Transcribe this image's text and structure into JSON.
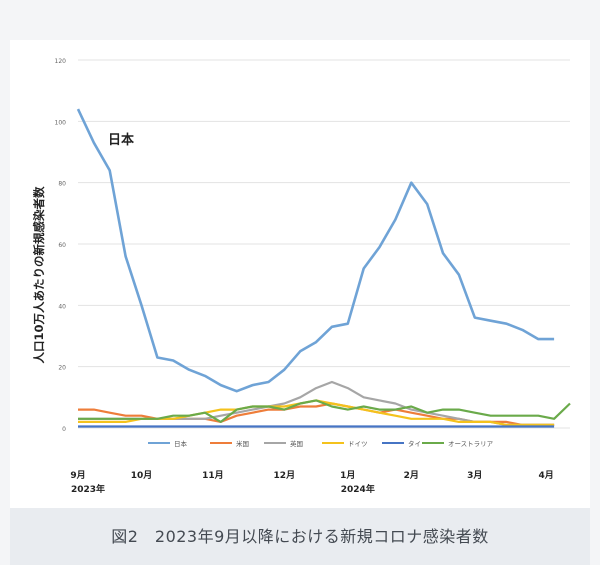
{
  "caption": "図2　2023年9月以降における新規コロナ感染者数",
  "chart_data": {
    "type": "line",
    "title": "",
    "ylabel": "人口10万人あたりの新規感染者数",
    "xlabel": "",
    "ylim": [
      0,
      120
    ],
    "yticks": [
      0,
      20,
      40,
      60,
      80,
      100,
      120
    ],
    "grid": true,
    "legend_position": "bottom",
    "annotation": "日本",
    "x_ticks": [
      {
        "x": 0,
        "label": "9月",
        "sub": "2023年"
      },
      {
        "x": 4,
        "label": "10月",
        "sub": ""
      },
      {
        "x": 8.5,
        "label": "11月",
        "sub": ""
      },
      {
        "x": 13,
        "label": "12月",
        "sub": ""
      },
      {
        "x": 17,
        "label": "1月",
        "sub": "2024年"
      },
      {
        "x": 21,
        "label": "2月",
        "sub": ""
      },
      {
        "x": 25,
        "label": "3月",
        "sub": ""
      },
      {
        "x": 29.5,
        "label": "4月",
        "sub": ""
      }
    ],
    "x": [
      0,
      1,
      2,
      3,
      4,
      5,
      6,
      7,
      8,
      9,
      10,
      11,
      12,
      13,
      14,
      15,
      16,
      17,
      18,
      19,
      20,
      21,
      22,
      23,
      24,
      25,
      26,
      27,
      28,
      29,
      30,
      31
    ],
    "series": [
      {
        "name": "日本",
        "color": "#6fa3d6",
        "values": [
          104,
          93,
          84,
          56,
          40,
          23,
          22,
          19,
          17,
          14,
          12,
          14,
          15,
          19,
          25,
          28,
          33,
          34,
          52,
          59,
          68,
          80,
          73,
          57,
          50,
          36,
          35,
          34,
          32,
          29,
          29,
          null
        ]
      },
      {
        "name": "米国",
        "color": "#ee7d3a",
        "values": [
          6,
          6,
          5,
          4,
          4,
          3,
          3,
          3,
          3,
          2,
          4,
          5,
          6,
          6,
          7,
          7,
          8,
          7,
          6,
          5,
          6,
          5,
          4,
          3,
          3,
          2,
          2,
          2,
          1,
          1,
          1,
          null
        ]
      },
      {
        "name": "英国",
        "color": "#a6a6a6",
        "values": [
          3,
          3,
          3,
          3,
          3,
          3,
          3,
          3,
          3,
          4,
          5,
          6,
          7,
          8,
          10,
          13,
          15,
          13,
          10,
          9,
          8,
          6,
          5,
          4,
          3,
          2,
          2,
          1,
          1,
          1,
          1,
          null
        ]
      },
      {
        "name": "ドイツ",
        "color": "#f4c21c",
        "values": [
          2,
          2,
          2,
          2,
          3,
          3,
          3,
          4,
          5,
          6,
          6,
          7,
          7,
          7,
          8,
          9,
          8,
          7,
          6,
          5,
          4,
          3,
          3,
          3,
          2,
          2,
          2,
          1,
          1,
          1,
          1,
          null
        ]
      },
      {
        "name": "タイ",
        "color": "#4674c4",
        "values": [
          0.5,
          0.5,
          0.5,
          0.5,
          0.5,
          0.5,
          0.5,
          0.5,
          0.5,
          0.5,
          0.5,
          0.5,
          0.5,
          0.5,
          0.5,
          0.5,
          0.5,
          0.5,
          0.5,
          0.5,
          0.5,
          0.5,
          0.5,
          0.5,
          0.5,
          0.5,
          0.5,
          0.5,
          0.5,
          0.5,
          0.5,
          null
        ]
      },
      {
        "name": "オーストラリア",
        "color": "#6aaa4a",
        "values": [
          3,
          3,
          3,
          3,
          3,
          3,
          4,
          4,
          5,
          2,
          6,
          7,
          7,
          6,
          8,
          9,
          7,
          6,
          7,
          6,
          6,
          7,
          5,
          6,
          6,
          5,
          4,
          4,
          4,
          4,
          3,
          8
        ]
      }
    ]
  }
}
